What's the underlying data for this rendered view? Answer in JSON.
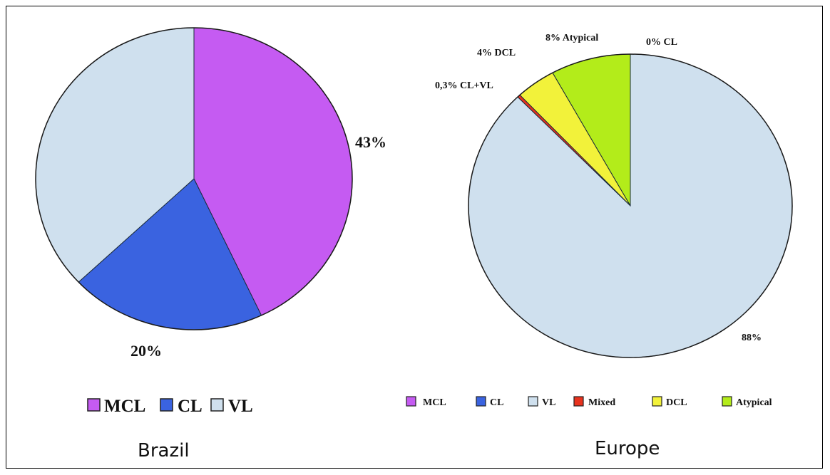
{
  "chart_data": [
    {
      "type": "pie",
      "title": "Brazil",
      "categories": [
        "MCL",
        "CL",
        "VL"
      ],
      "values": [
        43,
        20,
        37
      ],
      "colors": [
        "#c55bf2",
        "#3a63e0",
        "#cfe0ee"
      ],
      "data_labels": [
        "43%",
        "20%",
        ""
      ],
      "legend": {
        "position": "bottom",
        "entries": [
          "MCL",
          "CL",
          "VL"
        ]
      }
    },
    {
      "type": "pie",
      "title": "Europe",
      "categories": [
        "MCL",
        "CL",
        "VL",
        "Mixed",
        "DCL",
        "Atypical"
      ],
      "values": [
        0,
        0,
        88,
        0.3,
        4,
        8
      ],
      "colors": [
        "#c55bf2",
        "#3a63e0",
        "#cfe0ee",
        "#e8331e",
        "#f2f23a",
        "#b3ec1a"
      ],
      "data_labels": [
        "",
        "0% CL",
        "88%",
        "0,3% CL+VL",
        "4% DCL",
        "8% Atypical"
      ],
      "legend": {
        "position": "bottom",
        "entries": [
          "MCL",
          "CL",
          "VL",
          "Mixed",
          "DCL",
          "Atypical"
        ]
      }
    }
  ]
}
